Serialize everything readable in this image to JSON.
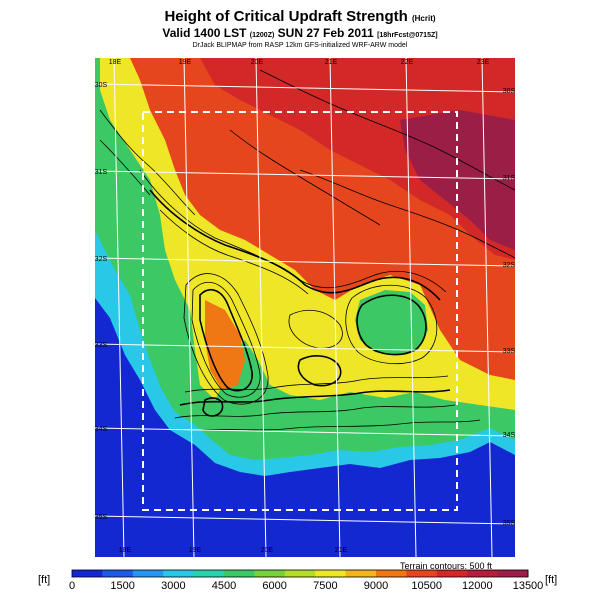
{
  "title": "Height of Critical Updraft Strength",
  "title_unit": "(Hcrit)",
  "subtitle_main": "Valid 1400 LST",
  "subtitle_code": "(1200Z)",
  "subtitle_date": "SUN 27 Feb 2011",
  "subtitle_extra": "[18hrFcst@0715Z]",
  "credit": "DrJack BLIPMAP from RASP 12km GFS-initialized WRF-ARW model",
  "lon_labels_top": [
    "18E",
    "19E",
    "20E",
    "21E",
    "22E",
    "23E"
  ],
  "lon_labels_bottom": [
    "18E",
    "19E",
    "20E",
    "21E"
  ],
  "lat_labels_left": [
    "30S",
    "31S",
    "32S",
    "33S",
    "34S",
    "35S"
  ],
  "lat_labels_right": [
    "30S",
    "31S",
    "32S",
    "33S",
    "34S",
    "35S"
  ],
  "terrain_note": "Terrain contours: 500 ft",
  "colorbar": {
    "unit_left": "[ft]",
    "unit_right": "[ft]",
    "labels": [
      "0",
      "1500",
      "3000",
      "4500",
      "6000",
      "7500",
      "9000",
      "10500",
      "12000",
      "13500"
    ],
    "colors": [
      "#1428d2",
      "#1e5ae6",
      "#2896f0",
      "#28c8e6",
      "#28d2aa",
      "#3cc864",
      "#78d23c",
      "#b4dc28",
      "#f0e628",
      "#f5b41e",
      "#f07814",
      "#e6461e",
      "#d22828",
      "#b41e3c",
      "#9b1e46"
    ]
  },
  "colors": {
    "ocean": "#1428d2",
    "coast": "#28c8e6",
    "land_low": "#3cc864",
    "land_mid": "#f0e628",
    "land_high": "#e6461e",
    "land_top": "#9b1e46",
    "box": "#ffffff"
  }
}
